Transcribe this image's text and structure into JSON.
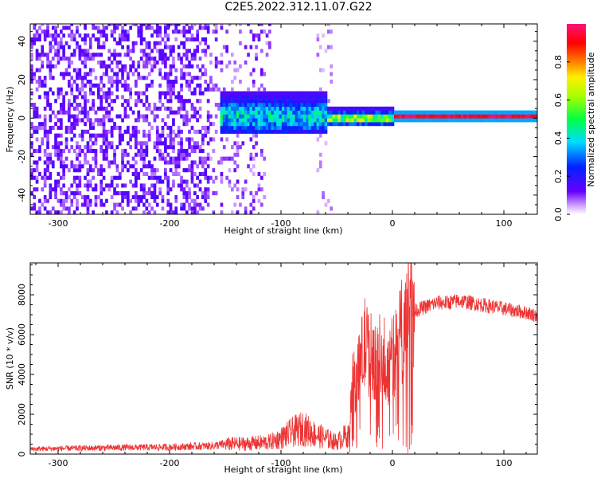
{
  "page_title": "C2E5.2022.312.11.07.G22",
  "chart_data": [
    {
      "type": "heatmap",
      "xlabel": "Height of straight line (km)",
      "ylabel": "Frequency (Hz)",
      "xlim": [
        -325,
        130
      ],
      "ylim": [
        -50,
        49
      ],
      "x_ticks": [
        -300,
        -200,
        -100,
        0,
        100
      ],
      "y_ticks": [
        -40,
        -20,
        0,
        20,
        40
      ],
      "colorbar": {
        "label": "Normalized spectral amplitude",
        "range": [
          0,
          1
        ],
        "ticks": [
          "0.0",
          "0.2",
          "0.4",
          "0.6",
          "0.8"
        ],
        "colormap": "rainbow (white → violet → blue → cyan → green → yellow → red → magenta)"
      },
      "regions": [
        {
          "x": [
            -325,
            -160
          ],
          "freq": [
            -50,
            49
          ],
          "amplitude": 0.08,
          "note": "scattered low-amplitude noise"
        },
        {
          "x": [
            -160,
            -110
          ],
          "freq": [
            -50,
            49
          ],
          "amplitude": 0.05,
          "note": "sparse noise"
        },
        {
          "x": [
            -150,
            -60
          ],
          "freq": [
            -10,
            14
          ],
          "amplitude": 0.25,
          "note": "signal band, blue/cyan"
        },
        {
          "x": [
            -60,
            0
          ],
          "freq": [
            -4,
            4
          ],
          "amplitude": 0.5,
          "note": "narrowing signal"
        },
        {
          "x": [
            0,
            130
          ],
          "freq": [
            -2,
            2
          ],
          "amplitude": 0.9,
          "note": "strong narrow carrier at 0 Hz"
        }
      ]
    },
    {
      "type": "line",
      "xlabel": "Height of straight line (km)",
      "ylabel": "SNR (10 * v/v)",
      "xlim": [
        -325,
        130
      ],
      "ylim": [
        0,
        9600
      ],
      "x_ticks": [
        -300,
        -200,
        -100,
        0,
        100
      ],
      "y_ticks": [
        0,
        2000,
        4000,
        6000,
        8000
      ],
      "color": "#ee3333",
      "series": [
        {
          "x": [
            -325,
            -300,
            -250,
            -200,
            -160,
            -150,
            -130,
            -110,
            -100,
            -90,
            -80,
            -70,
            -60,
            -50,
            -40,
            -35,
            -30,
            -25,
            -20,
            -15,
            -10,
            -5,
            0,
            5,
            10,
            15,
            20,
            30,
            40,
            50,
            60,
            70,
            80,
            90,
            100,
            110,
            120,
            130
          ],
          "values": [
            250,
            280,
            320,
            350,
            420,
            500,
            520,
            600,
            800,
            1100,
            1300,
            1000,
            800,
            600,
            1000,
            3500,
            4200,
            5500,
            5000,
            4800,
            4300,
            4200,
            4800,
            5600,
            6400,
            6700,
            7200,
            7400,
            7600,
            7600,
            7700,
            7600,
            7500,
            7400,
            7300,
            7200,
            7100,
            6950
          ]
        }
      ]
    }
  ]
}
